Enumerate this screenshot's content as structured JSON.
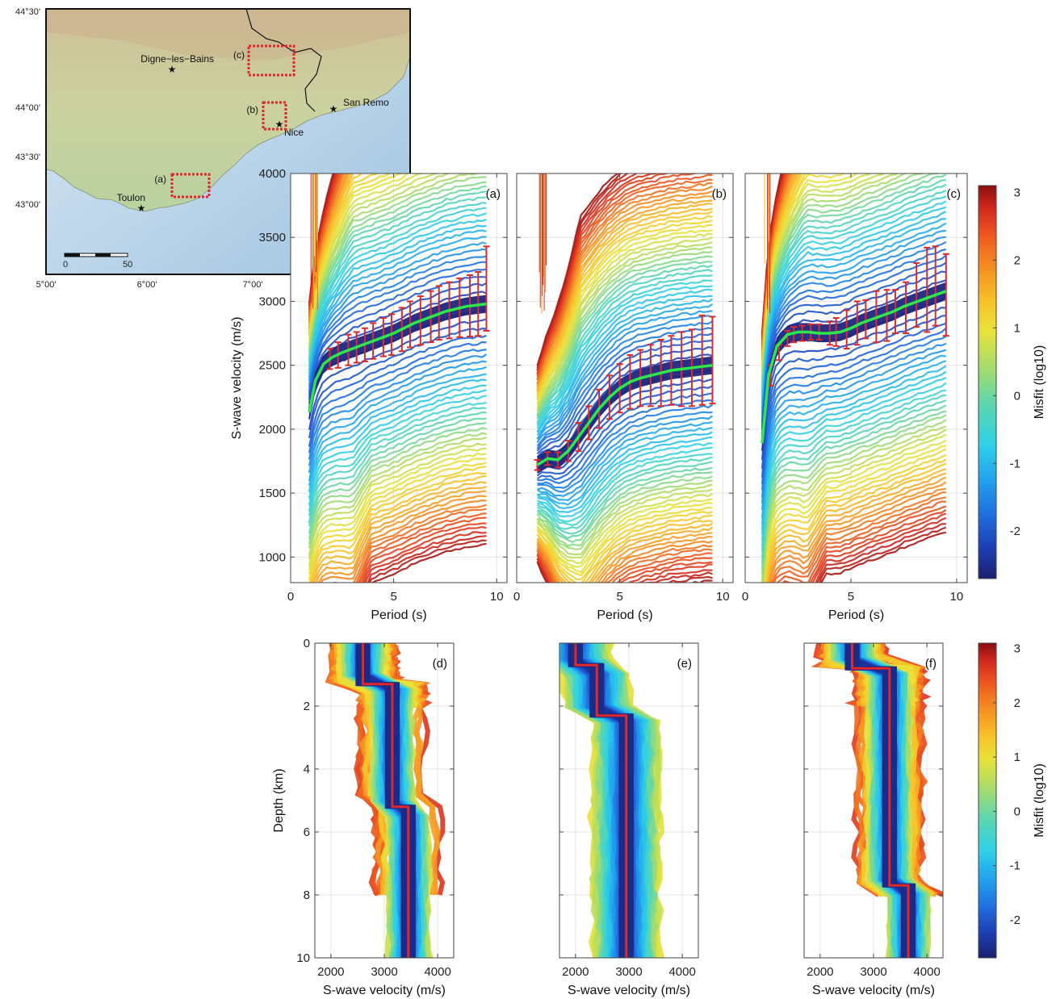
{
  "colors": {
    "misfit_scale": [
      "#1a1f6e",
      "#1e3fb5",
      "#1f6de0",
      "#22a7ee",
      "#2fd0e8",
      "#5ad6b0",
      "#a8dc6a",
      "#e8e23a",
      "#f8c428",
      "#f69522",
      "#ef5a1e",
      "#d52a1e",
      "#8c0d0d"
    ],
    "best_fit_dispersion": "#2ee84a",
    "error_bar": "#e0282a",
    "best_fit_profile": "#e0282a",
    "land": "#d9d4a8",
    "sea": "#c7dced",
    "box": "#e0282a"
  },
  "map": {
    "lat_labels": [
      "44°30'",
      "44°00'",
      "43°30'",
      "43°00'"
    ],
    "lon_labels": [
      "5°00'",
      "6°00'",
      "7°00'"
    ],
    "cities": [
      {
        "name": "Digne−les−Bains"
      },
      {
        "name": "Toulon"
      },
      {
        "name": "Nice"
      },
      {
        "name": "San Remo"
      }
    ],
    "box_labels": [
      "(a)",
      "(b)",
      "(c)"
    ],
    "scale": {
      "start": "0",
      "end": "50"
    }
  },
  "chart_data": [
    {
      "type": "line",
      "panel_label": "(a)",
      "xlabel": "Period (s)",
      "ylabel": "S-wave velocity (m/s)",
      "xlim": [
        0,
        10.5
      ],
      "ylim": [
        800,
        4000
      ],
      "xticks": [
        "0",
        "5",
        "10"
      ],
      "yticks": [
        "1000",
        "1500",
        "2000",
        "2500",
        "3000",
        "3500",
        "4000"
      ],
      "grid": true,
      "series": [
        {
          "x": [
            0.9,
            1.2,
            1.6,
            2.0,
            2.5,
            3.0,
            3.5,
            4.0,
            4.5,
            5.0,
            5.5,
            6.0,
            6.5,
            7.0,
            7.5,
            8.0,
            8.5,
            9.0,
            9.5
          ],
          "y": [
            2130,
            2380,
            2510,
            2560,
            2600,
            2630,
            2660,
            2690,
            2720,
            2750,
            2790,
            2830,
            2860,
            2890,
            2920,
            2940,
            2960,
            2970,
            2980
          ]
        }
      ],
      "errorbars": {
        "x": [
          1.9,
          2.3,
          2.8,
          3.2,
          3.6,
          4.0,
          4.5,
          4.9,
          5.4,
          5.8,
          6.3,
          6.8,
          7.2,
          7.7,
          8.2,
          8.7,
          9.1,
          9.5
        ],
        "y": [
          2550,
          2580,
          2620,
          2640,
          2660,
          2690,
          2720,
          2740,
          2780,
          2820,
          2850,
          2880,
          2910,
          2930,
          2950,
          2965,
          2980,
          3100
        ],
        "err": [
          80,
          100,
          120,
          120,
          130,
          140,
          150,
          160,
          170,
          180,
          190,
          200,
          210,
          220,
          230,
          240,
          250,
          330
        ]
      }
    },
    {
      "type": "line",
      "panel_label": "(b)",
      "xlabel": "Period (s)",
      "ylabel": "",
      "xlim": [
        0,
        10.5
      ],
      "ylim": [
        800,
        4000
      ],
      "xticks": [
        "0",
        "5",
        "10"
      ],
      "yticks": [],
      "grid": true,
      "series": [
        {
          "x": [
            1.0,
            1.5,
            2.0,
            2.5,
            3.0,
            3.5,
            4.0,
            4.5,
            5.0,
            5.5,
            6.0,
            6.5,
            7.0,
            7.5,
            8.0,
            8.5,
            9.0,
            9.5
          ],
          "y": [
            1720,
            1770,
            1760,
            1830,
            1940,
            2050,
            2160,
            2250,
            2320,
            2370,
            2400,
            2420,
            2440,
            2460,
            2470,
            2480,
            2490,
            2500
          ]
        }
      ],
      "errorbars": {
        "x": [
          1.0,
          1.5,
          2.0,
          2.5,
          3.0,
          3.5,
          4.0,
          4.5,
          5.0,
          5.5,
          6.0,
          6.5,
          7.0,
          7.5,
          8.0,
          8.5,
          9.0,
          9.5
        ],
        "y": [
          1720,
          1770,
          1760,
          1830,
          1940,
          2050,
          2160,
          2250,
          2320,
          2370,
          2400,
          2420,
          2440,
          2460,
          2470,
          2480,
          2540,
          2540
        ],
        "err": [
          40,
          50,
          60,
          80,
          110,
          130,
          150,
          170,
          190,
          210,
          220,
          240,
          260,
          270,
          290,
          300,
          350,
          340
        ]
      }
    },
    {
      "type": "line",
      "panel_label": "(c)",
      "xlabel": "Period (s)",
      "ylabel": "",
      "xlim": [
        0,
        10.5
      ],
      "ylim": [
        800,
        4000
      ],
      "xticks": [
        "0",
        "5",
        "10"
      ],
      "yticks": [],
      "grid": true,
      "series": [
        {
          "x": [
            0.8,
            1.1,
            1.5,
            2.0,
            2.5,
            3.0,
            3.5,
            4.0,
            4.5,
            5.0,
            5.5,
            6.0,
            6.5,
            7.0,
            7.5,
            8.0,
            8.5,
            9.0,
            9.5
          ],
          "y": [
            1890,
            2420,
            2650,
            2740,
            2760,
            2760,
            2750,
            2750,
            2760,
            2790,
            2830,
            2860,
            2890,
            2920,
            2960,
            2990,
            3020,
            3050,
            3080
          ]
        }
      ],
      "errorbars": {
        "x": [
          1.2,
          1.6,
          2.0,
          2.3,
          2.7,
          3.1,
          3.5,
          4.0,
          4.3,
          4.8,
          5.3,
          5.7,
          6.2,
          6.7,
          7.1,
          7.6,
          8.1,
          8.6,
          9.0,
          9.5
        ],
        "y": [
          2420,
          2600,
          2710,
          2740,
          2750,
          2760,
          2760,
          2750,
          2760,
          2780,
          2830,
          2860,
          2880,
          2890,
          2920,
          2950,
          3050,
          3090,
          3120,
          3050
        ],
        "err": [
          80,
          60,
          60,
          60,
          60,
          60,
          60,
          90,
          110,
          150,
          170,
          150,
          200,
          200,
          170,
          200,
          250,
          330,
          310,
          320
        ]
      }
    },
    {
      "type": "line",
      "panel_label": "(d)",
      "xlabel": "S-wave velocity (m/s)",
      "ylabel": "Depth (km)",
      "xlim": [
        1700,
        4300
      ],
      "ylim": [
        0,
        10
      ],
      "xticks": [
        "2000",
        "3000",
        "4000"
      ],
      "yticks": [
        "0",
        "2",
        "4",
        "6",
        "8",
        "10"
      ],
      "grid": true,
      "series": [
        {
          "x": [
            2600,
            2600,
            3150,
            3150,
            3250,
            3250,
            3450,
            3450
          ],
          "y": [
            0,
            1.3,
            1.3,
            5.2,
            5.2,
            5.2,
            5.2,
            10
          ]
        }
      ]
    },
    {
      "type": "line",
      "panel_label": "(e)",
      "xlabel": "S-wave velocity (m/s)",
      "ylabel": "",
      "xlim": [
        1700,
        4300
      ],
      "ylim": [
        0,
        10
      ],
      "xticks": [
        "2000",
        "3000",
        "4000"
      ],
      "yticks": [],
      "grid": true,
      "series": [
        {
          "x": [
            2000,
            2000,
            2400,
            2400,
            2950,
            2950
          ],
          "y": [
            0,
            0.7,
            0.7,
            2.3,
            2.3,
            10
          ]
        }
      ]
    },
    {
      "type": "line",
      "panel_label": "(f)",
      "xlabel": "S-wave velocity (m/s)",
      "ylabel": "",
      "xlim": [
        1700,
        4300
      ],
      "ylim": [
        0,
        10
      ],
      "xticks": [
        "2000",
        "3000",
        "4000"
      ],
      "yticks": [],
      "grid": true,
      "series": [
        {
          "x": [
            2600,
            2600,
            3300,
            3300,
            3650,
            3650
          ],
          "y": [
            0,
            0.8,
            0.8,
            7.7,
            7.7,
            10
          ]
        }
      ]
    },
    {
      "type": "heatmap",
      "title": "",
      "colorbar_label": "Misfit (log10)",
      "zlim": [
        -2.7,
        3.1
      ],
      "ticks": [
        "3",
        "2",
        "1",
        "0",
        "-1",
        "-2"
      ]
    }
  ]
}
